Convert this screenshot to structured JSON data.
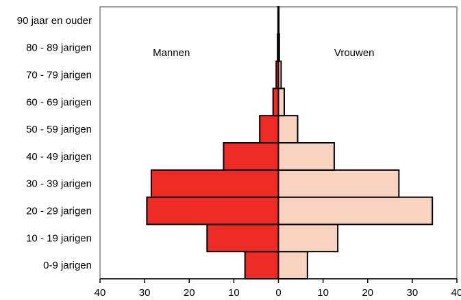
{
  "chart_data": {
    "type": "bar",
    "orientation": "horizontal-diverging",
    "categories": [
      "0-9 jarigen",
      "10 - 19 jarigen",
      "20 - 29 jarigen",
      "30 - 39 jarigen",
      "40 - 49 jarigen",
      "50 - 59 jarigen",
      "60 - 69 jarigen",
      "70 - 79 jarigen",
      "80 - 89 jarigen",
      "90 jaar en ouder"
    ],
    "series": [
      {
        "name": "Mannen",
        "side": "left",
        "color": "#ee2a24",
        "values": [
          7.5,
          16,
          29.5,
          28.5,
          12.3,
          4.2,
          1.2,
          0.5,
          0.2,
          0.1
        ]
      },
      {
        "name": "Vrouwen",
        "side": "right",
        "color": "#f7d3c0",
        "values": [
          6.5,
          13.3,
          34.5,
          27,
          12.5,
          4.3,
          1.3,
          0.6,
          0.2,
          0.1
        ]
      }
    ],
    "xlim": [
      -40,
      40
    ],
    "xticks": [
      -40,
      -30,
      -20,
      -10,
      0,
      10,
      20,
      30,
      40
    ],
    "xtick_labels": [
      "40",
      "30",
      "20",
      "10",
      "0",
      "10",
      "20",
      "30",
      "40"
    ],
    "title": "",
    "xlabel": "",
    "ylabel": "",
    "grid": false,
    "legend": "inside-top"
  }
}
